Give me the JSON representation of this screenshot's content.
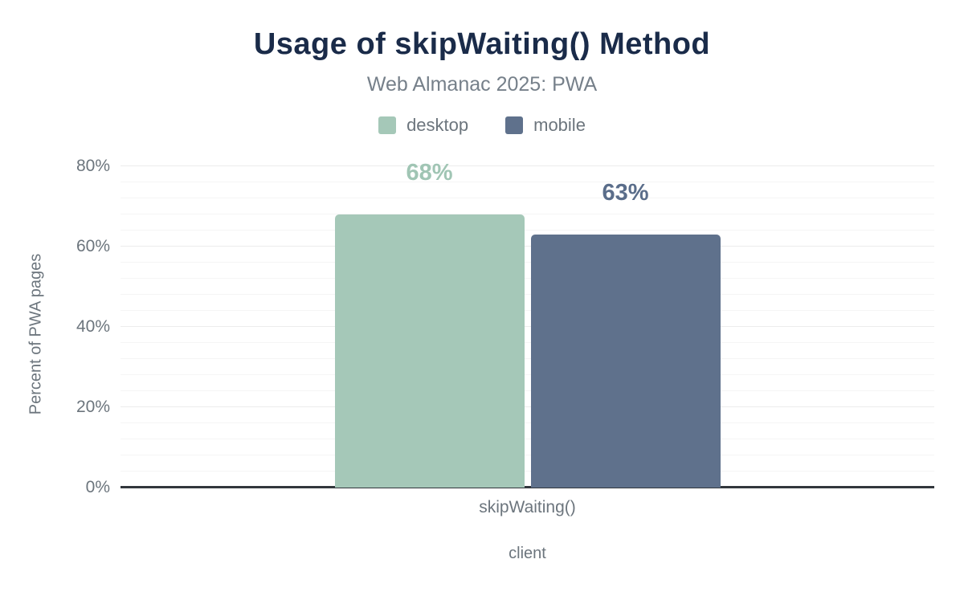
{
  "header": {
    "title": "Usage of skipWaiting() Method",
    "subtitle": "Web Almanac 2025: PWA"
  },
  "chart_data": {
    "type": "bar",
    "title": "Usage of skipWaiting() Method",
    "subtitle": "Web Almanac 2025: PWA",
    "categories": [
      "skipWaiting()"
    ],
    "series": [
      {
        "name": "desktop",
        "values": [
          68
        ],
        "value_labels": [
          "68%"
        ],
        "color": "#a5c8b8",
        "label_color": "#a0c5b4"
      },
      {
        "name": "mobile",
        "values": [
          63
        ],
        "value_labels": [
          "63%"
        ],
        "color": "#5f718c",
        "label_color": "#5a6d8a"
      }
    ],
    "xlabel": "client",
    "ylabel": "Percent of PWA pages",
    "ylim": [
      0,
      80
    ],
    "y_ticks": [
      "0%",
      "20%",
      "40%",
      "60%",
      "80%"
    ],
    "y_tick_values": [
      0,
      20,
      40,
      60,
      80
    ],
    "minor_grid_step": 4,
    "major_grid_step": 20,
    "grid": true,
    "legend_position": "top"
  },
  "colors": {
    "title": "#1a2b49",
    "subtitle": "#76808a",
    "axis_text": "#6c757d",
    "axis_line": "#32373c",
    "minor_grid": "#f5f5f5",
    "major_grid": "#ececec",
    "background": "#ffffff"
  }
}
